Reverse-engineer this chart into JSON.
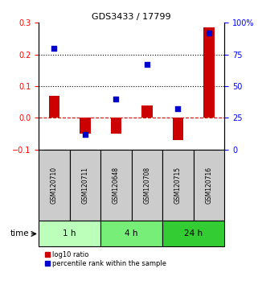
{
  "title": "GDS3433 / 17799",
  "samples": [
    "GSM120710",
    "GSM120711",
    "GSM120648",
    "GSM120708",
    "GSM120715",
    "GSM120716"
  ],
  "log10_ratio": [
    0.07,
    -0.05,
    -0.05,
    0.04,
    -0.07,
    0.285
  ],
  "percentile_rank": [
    80,
    12,
    40,
    67,
    32,
    92
  ],
  "left_ylim": [
    -0.1,
    0.3
  ],
  "right_ylim": [
    0,
    100
  ],
  "left_yticks": [
    -0.1,
    0.0,
    0.1,
    0.2,
    0.3
  ],
  "right_yticks": [
    0,
    25,
    50,
    75,
    100
  ],
  "right_yticklabels": [
    "0",
    "25",
    "50",
    "75",
    "100%"
  ],
  "hlines": [
    0.2,
    0.1
  ],
  "bar_color": "#cc0000",
  "dot_color": "#0000cc",
  "zero_line_color": "#cc0000",
  "time_groups": [
    {
      "label": "1 h",
      "samples": [
        0,
        1
      ],
      "color": "#bbffbb"
    },
    {
      "label": "4 h",
      "samples": [
        2,
        3
      ],
      "color": "#77ee77"
    },
    {
      "label": "24 h",
      "samples": [
        4,
        5
      ],
      "color": "#33cc33"
    }
  ],
  "legend_bar_label": "log10 ratio",
  "legend_dot_label": "percentile rank within the sample",
  "time_label": "time",
  "bar_width": 0.35,
  "dot_size": 22,
  "sample_box_color": "#cccccc",
  "title_fontsize": 8,
  "tick_fontsize": 7,
  "sample_fontsize": 5.5,
  "time_fontsize": 7.5,
  "legend_fontsize": 6
}
